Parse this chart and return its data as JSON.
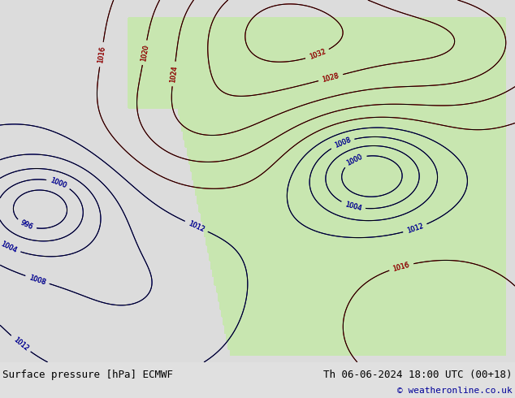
{
  "title_left": "Surface pressure [hPa] ECMWF",
  "title_right": "Th 06-06-2024 18:00 UTC (00+18)",
  "copyright": "© weatheronline.co.uk",
  "bg_color": "#dcdcdc",
  "land_color": "#c8e6b0",
  "ocean_color": "#dcdcdc",
  "bottom_bar_color": "#e0e0e0",
  "text_color_black": "#000000",
  "text_color_blue": "#000099",
  "text_color_red": "#cc0000",
  "figsize": [
    6.34,
    4.9
  ],
  "dpi": 100,
  "font_size_bottom": 9,
  "font_size_copyright": 8
}
